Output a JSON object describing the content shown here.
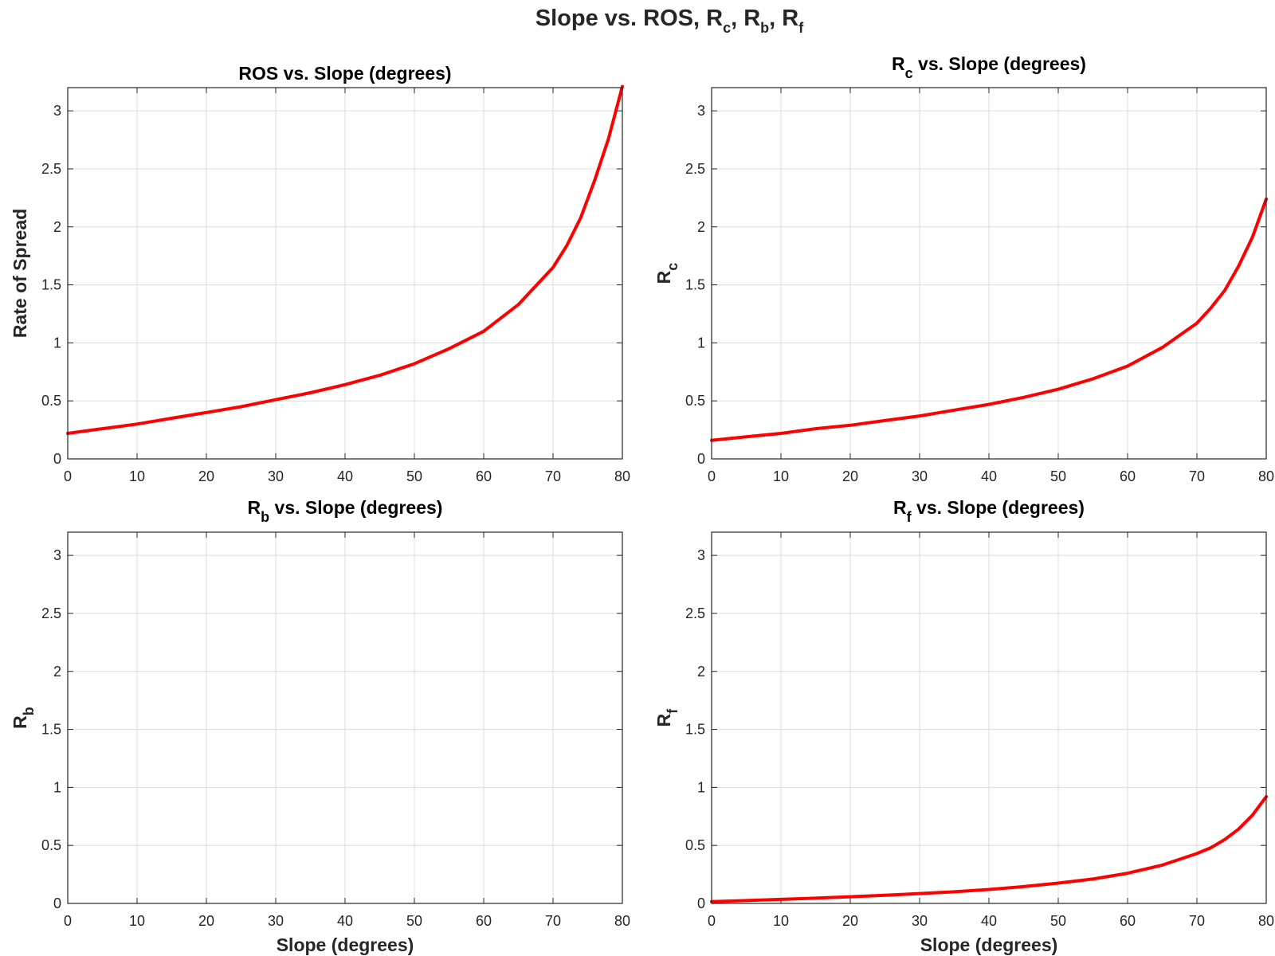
{
  "figure": {
    "title": "Slope vs. ROS, R_c, R_b, R_f",
    "title_parts": [
      {
        "text": "Slope vs. ROS, R",
        "sub": false
      },
      {
        "text": "c",
        "sub": true
      },
      {
        "text": ", R",
        "sub": false
      },
      {
        "text": "b",
        "sub": true
      },
      {
        "text": ", R",
        "sub": false
      },
      {
        "text": "f",
        "sub": true
      }
    ]
  },
  "line_color": "#ff0000",
  "grid_color": "#dcdcdc",
  "chart_data": [
    {
      "type": "line",
      "title": "ROS vs. Slope (degrees)",
      "title_parts": [
        {
          "text": "ROS vs. Slope (degrees)",
          "sub": false
        }
      ],
      "xlabel": "",
      "ylabel": "Rate of Spread",
      "ylabel_parts": [
        {
          "text": "Rate of Spread",
          "sub": false
        }
      ],
      "xlim": [
        0,
        80
      ],
      "ylim": [
        0,
        3.2
      ],
      "xticks": [
        "0",
        "10",
        "20",
        "30",
        "40",
        "50",
        "60",
        "70",
        "80"
      ],
      "yticks": [
        "0",
        "0.5",
        "1",
        "1.5",
        "2",
        "2.5",
        "3"
      ],
      "grid": true,
      "series": [
        {
          "name": "ROS",
          "x": [
            0,
            5,
            10,
            15,
            20,
            25,
            30,
            35,
            40,
            45,
            50,
            55,
            60,
            65,
            70,
            72,
            74,
            76,
            78,
            80
          ],
          "y": [
            0.22,
            0.26,
            0.3,
            0.35,
            0.4,
            0.45,
            0.51,
            0.57,
            0.64,
            0.72,
            0.82,
            0.95,
            1.1,
            1.33,
            1.65,
            1.84,
            2.08,
            2.4,
            2.76,
            3.21
          ]
        }
      ]
    },
    {
      "type": "line",
      "title": "R_c vs. Slope (degrees)",
      "title_parts": [
        {
          "text": "R",
          "sub": false
        },
        {
          "text": "c",
          "sub": true
        },
        {
          "text": " vs. Slope (degrees)",
          "sub": false
        }
      ],
      "xlabel": "",
      "ylabel": "R_c",
      "ylabel_parts": [
        {
          "text": "R",
          "sub": false
        },
        {
          "text": "c",
          "sub": true
        }
      ],
      "xlim": [
        0,
        80
      ],
      "ylim": [
        0,
        3.2
      ],
      "xticks": [
        "0",
        "10",
        "20",
        "30",
        "40",
        "50",
        "60",
        "70",
        "80"
      ],
      "yticks": [
        "0",
        "0.5",
        "1",
        "1.5",
        "2",
        "2.5",
        "3"
      ],
      "grid": true,
      "series": [
        {
          "name": "R_c",
          "x": [
            0,
            5,
            10,
            15,
            20,
            25,
            30,
            35,
            40,
            45,
            50,
            55,
            60,
            65,
            70,
            72,
            74,
            76,
            78,
            80
          ],
          "y": [
            0.16,
            0.19,
            0.22,
            0.26,
            0.29,
            0.33,
            0.37,
            0.42,
            0.47,
            0.53,
            0.6,
            0.69,
            0.8,
            0.96,
            1.17,
            1.3,
            1.45,
            1.66,
            1.91,
            2.24
          ]
        }
      ]
    },
    {
      "type": "line",
      "title": "R_b vs. Slope (degrees)",
      "title_parts": [
        {
          "text": "R",
          "sub": false
        },
        {
          "text": "b",
          "sub": true
        },
        {
          "text": " vs. Slope (degrees)",
          "sub": false
        }
      ],
      "xlabel": "Slope (degrees)",
      "ylabel": "R_b",
      "ylabel_parts": [
        {
          "text": "R",
          "sub": false
        },
        {
          "text": "b",
          "sub": true
        }
      ],
      "xlim": [
        0,
        80
      ],
      "ylim": [
        0,
        3.2
      ],
      "xticks": [
        "0",
        "10",
        "20",
        "30",
        "40",
        "50",
        "60",
        "70",
        "80"
      ],
      "yticks": [
        "0",
        "0.5",
        "1",
        "1.5",
        "2",
        "2.5",
        "3"
      ],
      "grid": true,
      "series": []
    },
    {
      "type": "line",
      "title": "R_f vs. Slope (degrees)",
      "title_parts": [
        {
          "text": "R",
          "sub": false
        },
        {
          "text": "f",
          "sub": true
        },
        {
          "text": " vs. Slope (degrees)",
          "sub": false
        }
      ],
      "xlabel": "Slope (degrees)",
      "ylabel": "R_f",
      "ylabel_parts": [
        {
          "text": "R",
          "sub": false
        },
        {
          "text": "f",
          "sub": true
        }
      ],
      "xlim": [
        0,
        80
      ],
      "ylim": [
        0,
        3.2
      ],
      "xticks": [
        "0",
        "10",
        "20",
        "30",
        "40",
        "50",
        "60",
        "70",
        "80"
      ],
      "yticks": [
        "0",
        "0.5",
        "1",
        "1.5",
        "2",
        "2.5",
        "3"
      ],
      "grid": true,
      "series": [
        {
          "name": "R_f",
          "x": [
            0,
            5,
            10,
            15,
            20,
            25,
            30,
            35,
            40,
            45,
            50,
            55,
            60,
            65,
            70,
            72,
            74,
            76,
            78,
            80
          ],
          "y": [
            0.015,
            0.025,
            0.035,
            0.045,
            0.058,
            0.07,
            0.085,
            0.1,
            0.12,
            0.145,
            0.175,
            0.21,
            0.26,
            0.33,
            0.43,
            0.48,
            0.55,
            0.64,
            0.76,
            0.92
          ]
        }
      ]
    }
  ]
}
